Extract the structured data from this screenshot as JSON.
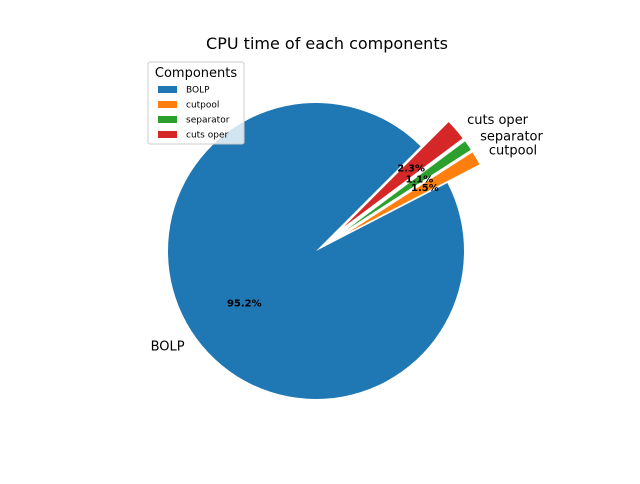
{
  "chart_data": {
    "type": "pie",
    "title": "CPU time of each components",
    "labels": [
      "BOLP",
      "cutpool",
      "separator",
      "cuts oper"
    ],
    "values": [
      95.2,
      1.5,
      1.1,
      2.3
    ],
    "pct_labels": [
      "95.2%",
      "1.5%",
      "1.1%",
      "2.3%"
    ],
    "colors": [
      "#1f77b4",
      "#ff7f0e",
      "#2ca02c",
      "#d62728"
    ],
    "exploded": [
      false,
      true,
      true,
      true
    ],
    "start_angle_deg": 45,
    "direction": "counterclockwise",
    "legend": {
      "title": "Components",
      "placement": "upper-left",
      "entries": [
        "BOLP",
        "cutpool",
        "separator",
        "cuts oper"
      ]
    }
  }
}
